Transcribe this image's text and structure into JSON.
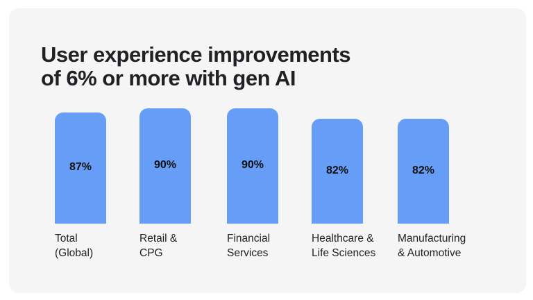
{
  "chart_data": {
    "type": "bar",
    "title": "User experience improvements of 6% or more with gen AI",
    "title_lines": [
      "User experience improvements",
      "of 6% or more with gen AI"
    ],
    "categories": [
      [
        "Total",
        "(Global)"
      ],
      [
        "Retail &",
        "CPG"
      ],
      [
        "Financial",
        "Services"
      ],
      [
        "Healthcare &",
        "Life Sciences"
      ],
      [
        "Manufacturing",
        "& Automotive"
      ]
    ],
    "values": [
      87,
      90,
      90,
      82,
      82
    ],
    "value_labels": [
      "87%",
      "90%",
      "90%",
      "82%",
      "82%"
    ],
    "xlabel": "",
    "ylabel": "",
    "ylim": [
      0,
      100
    ],
    "grid": false,
    "bar_color": "#669df6"
  }
}
